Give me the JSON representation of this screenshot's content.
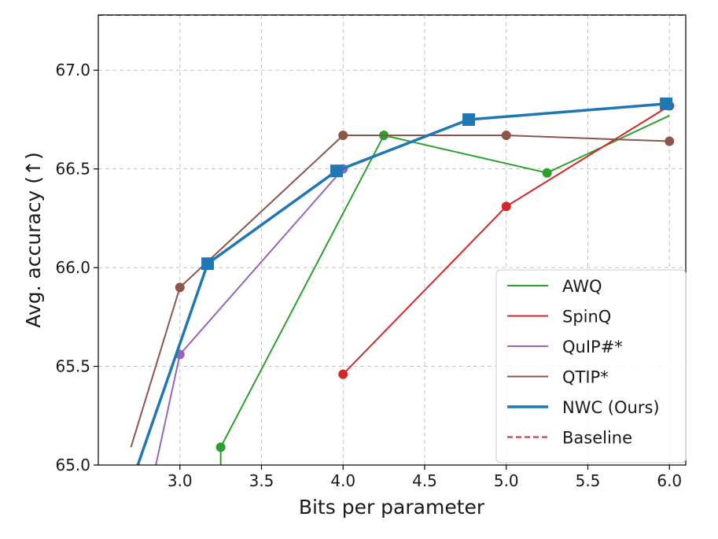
{
  "chart_data": {
    "type": "line",
    "xlabel": "Bits per parameter",
    "ylabel": "Avg. accuracy (↑)",
    "xlim": [
      2.5,
      6.1
    ],
    "ylim": [
      65.0,
      67.28
    ],
    "xticks": [
      3.0,
      3.5,
      4.0,
      4.5,
      5.0,
      5.5,
      6.0
    ],
    "xtick_labels": [
      "3.0",
      "3.5",
      "4.0",
      "4.5",
      "5.0",
      "5.5",
      "6.0"
    ],
    "yticks": [
      65.0,
      65.5,
      66.0,
      66.5,
      67.0
    ],
    "ytick_labels": [
      "65.0",
      "65.5",
      "66.0",
      "66.5",
      "67.0"
    ],
    "grid": true,
    "legend_position": "lower-right",
    "series": [
      {
        "name": "AWQ",
        "color": "#2ca02c",
        "marker": "circle",
        "line_width": "normal",
        "x": [
          3.25,
          3.25,
          4.25,
          5.25,
          6.0
        ],
        "y": [
          64.9,
          65.09,
          66.67,
          66.48,
          66.77
        ],
        "marked": [
          false,
          true,
          true,
          true,
          false
        ]
      },
      {
        "name": "SpinQ",
        "color": "#d62728",
        "marker": "circle",
        "line_width": "normal",
        "x": [
          4.0,
          5.0,
          6.0
        ],
        "y": [
          65.46,
          66.31,
          66.82
        ],
        "marked": [
          true,
          true,
          true
        ]
      },
      {
        "name": "QuIP#*",
        "color": "#9467bd",
        "marker": "circle",
        "line_width": "normal",
        "x": [
          2.8,
          3.0,
          4.0
        ],
        "y": [
          64.8,
          65.56,
          66.5
        ],
        "marked": [
          false,
          true,
          true
        ]
      },
      {
        "name": "QTIP*",
        "color": "#8c564b",
        "marker": "circle",
        "line_width": "normal",
        "x": [
          2.7,
          3.0,
          4.0,
          5.0,
          6.0
        ],
        "y": [
          65.09,
          65.9,
          66.67,
          66.67,
          66.64
        ],
        "marked": [
          false,
          true,
          true,
          true,
          true
        ]
      },
      {
        "name": "NWC (Ours)",
        "color": "#1f77b4",
        "marker": "square",
        "line_width": "bold",
        "x": [
          2.7,
          3.17,
          3.96,
          4.77,
          5.98
        ],
        "y": [
          64.9,
          66.02,
          66.49,
          66.75,
          66.83
        ],
        "marked": [
          false,
          true,
          true,
          true,
          true
        ]
      }
    ],
    "baseline": {
      "name": "Baseline",
      "color": "#d62728",
      "style": "dashed",
      "y": 67.28
    }
  }
}
